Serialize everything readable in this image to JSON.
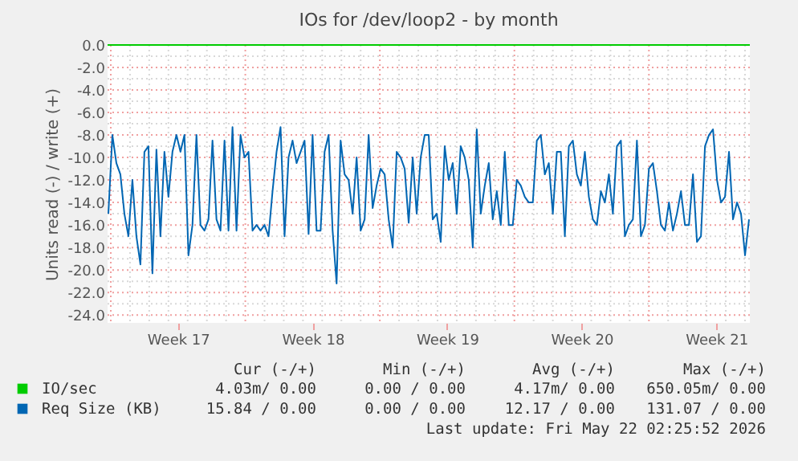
{
  "chart_data": {
    "type": "line",
    "title": "IOs for /dev/loop2 - by month",
    "ylabel": "Units read (-) / write (+)",
    "xlim": [
      "2026-04-19T20:00",
      "2026-05-23T06:00"
    ],
    "xticks": [
      {
        "value": "2026-04-23T12:00",
        "label": "Week 17"
      },
      {
        "value": "2026-04-30T12:00",
        "label": "Week 18"
      },
      {
        "value": "2026-05-07T12:00",
        "label": "Week 19"
      },
      {
        "value": "2026-05-14T12:00",
        "label": "Week 20"
      },
      {
        "value": "2026-05-21T12:00",
        "label": "Week 21"
      }
    ],
    "ylim": [
      -24.7,
      0
    ],
    "yticks": [
      {
        "value": 0,
        "label": "0.0"
      },
      {
        "value": -2,
        "label": "-2.0"
      },
      {
        "value": -4,
        "label": "-4.0"
      },
      {
        "value": -6,
        "label": "-6.0"
      },
      {
        "value": -8,
        "label": "-8.0"
      },
      {
        "value": -10,
        "label": "-10.0"
      },
      {
        "value": -12,
        "label": "-12.0"
      },
      {
        "value": -14,
        "label": "-14.0"
      },
      {
        "value": -16,
        "label": "-16.0"
      },
      {
        "value": -18,
        "label": "-18.0"
      },
      {
        "value": -20,
        "label": "-20.0"
      },
      {
        "value": -22,
        "label": "-22.0"
      },
      {
        "value": -24,
        "label": "-24.0"
      }
    ],
    "grid": true,
    "legend": "bottom",
    "x": [
      "2026-04-19T21:00",
      "2026-04-20T02:00",
      "2026-04-20T07:00",
      "2026-04-20T12:00",
      "2026-04-20T17:00",
      "2026-04-20T22:00",
      "2026-04-21T03:00",
      "2026-04-21T08:00",
      "2026-04-21T13:00",
      "2026-04-21T18:00",
      "2026-04-21T23:00",
      "2026-04-22T04:00",
      "2026-04-22T09:00",
      "2026-04-22T14:00",
      "2026-04-22T19:00",
      "2026-04-23T00:00",
      "2026-04-23T05:00",
      "2026-04-23T10:00",
      "2026-04-23T15:00",
      "2026-04-23T20:00",
      "2026-04-24T01:00",
      "2026-04-24T06:00",
      "2026-04-24T11:00",
      "2026-04-24T16:00",
      "2026-04-24T21:00",
      "2026-04-25T02:00",
      "2026-04-25T07:00",
      "2026-04-25T12:00",
      "2026-04-25T17:00",
      "2026-04-25T22:00",
      "2026-04-26T03:00",
      "2026-04-26T08:00",
      "2026-04-26T13:00",
      "2026-04-26T18:00",
      "2026-04-26T23:00",
      "2026-04-27T04:00",
      "2026-04-27T09:00",
      "2026-04-27T14:00",
      "2026-04-27T19:00",
      "2026-04-28T00:00",
      "2026-04-28T05:00",
      "2026-04-28T10:00",
      "2026-04-28T15:00",
      "2026-04-28T20:00",
      "2026-04-29T01:00",
      "2026-04-29T06:00",
      "2026-04-29T11:00",
      "2026-04-29T16:00",
      "2026-04-29T21:00",
      "2026-04-30T02:00",
      "2026-04-30T07:00",
      "2026-04-30T12:00",
      "2026-04-30T17:00",
      "2026-04-30T22:00",
      "2026-05-01T03:00",
      "2026-05-01T08:00",
      "2026-05-01T13:00",
      "2026-05-01T18:00",
      "2026-05-01T23:00",
      "2026-05-02T04:00",
      "2026-05-02T09:00",
      "2026-05-02T14:00",
      "2026-05-02T19:00",
      "2026-05-03T00:00",
      "2026-05-03T05:00",
      "2026-05-03T10:00",
      "2026-05-03T15:00",
      "2026-05-03T20:00",
      "2026-05-04T01:00",
      "2026-05-04T06:00",
      "2026-05-04T11:00",
      "2026-05-04T16:00",
      "2026-05-04T21:00",
      "2026-05-05T02:00",
      "2026-05-05T07:00",
      "2026-05-05T12:00",
      "2026-05-05T17:00",
      "2026-05-05T22:00",
      "2026-05-06T03:00",
      "2026-05-06T08:00",
      "2026-05-06T13:00",
      "2026-05-06T18:00",
      "2026-05-06T23:00",
      "2026-05-07T04:00",
      "2026-05-07T09:00",
      "2026-05-07T14:00",
      "2026-05-07T19:00",
      "2026-05-08T00:00",
      "2026-05-08T05:00",
      "2026-05-08T10:00",
      "2026-05-08T15:00",
      "2026-05-08T20:00",
      "2026-05-09T01:00",
      "2026-05-09T06:00",
      "2026-05-09T11:00",
      "2026-05-09T16:00",
      "2026-05-09T21:00",
      "2026-05-10T02:00",
      "2026-05-10T07:00",
      "2026-05-10T12:00",
      "2026-05-10T17:00",
      "2026-05-10T22:00",
      "2026-05-11T03:00",
      "2026-05-11T08:00",
      "2026-05-11T13:00",
      "2026-05-11T18:00",
      "2026-05-11T23:00",
      "2026-05-12T04:00",
      "2026-05-12T09:00",
      "2026-05-12T14:00",
      "2026-05-12T19:00",
      "2026-05-13T00:00",
      "2026-05-13T05:00",
      "2026-05-13T10:00",
      "2026-05-13T15:00",
      "2026-05-13T20:00",
      "2026-05-14T01:00",
      "2026-05-14T06:00",
      "2026-05-14T11:00",
      "2026-05-14T16:00",
      "2026-05-14T21:00",
      "2026-05-15T02:00",
      "2026-05-15T07:00",
      "2026-05-15T12:00",
      "2026-05-15T17:00",
      "2026-05-15T22:00",
      "2026-05-16T03:00",
      "2026-05-16T08:00",
      "2026-05-16T13:00",
      "2026-05-16T18:00",
      "2026-05-16T23:00",
      "2026-05-17T04:00",
      "2026-05-17T09:00",
      "2026-05-17T14:00",
      "2026-05-17T19:00",
      "2026-05-18T00:00",
      "2026-05-18T05:00",
      "2026-05-18T10:00",
      "2026-05-18T15:00",
      "2026-05-18T20:00",
      "2026-05-19T01:00",
      "2026-05-19T06:00",
      "2026-05-19T11:00",
      "2026-05-19T16:00",
      "2026-05-19T21:00",
      "2026-05-20T02:00",
      "2026-05-20T07:00",
      "2026-05-20T12:00",
      "2026-05-20T17:00",
      "2026-05-20T22:00",
      "2026-05-21T03:00",
      "2026-05-21T08:00",
      "2026-05-21T13:00",
      "2026-05-21T18:00",
      "2026-05-21T23:00",
      "2026-05-22T04:00",
      "2026-05-22T09:00",
      "2026-05-22T14:00",
      "2026-05-22T19:00",
      "2026-05-23T00:00",
      "2026-05-23T05:00"
    ],
    "series": [
      {
        "name": "IO/sec",
        "color": "#00cc00",
        "x": [
          "2026-04-19T20:00",
          "2026-05-23T06:00"
        ],
        "values": [
          0,
          0
        ]
      },
      {
        "name": "Req Size (KB)",
        "color": "#0066b3",
        "values": [
          -15,
          -8,
          -10.5,
          -11.5,
          -15,
          -17,
          -12,
          -17,
          -19.5,
          -9.5,
          -9,
          -20.3,
          -9.3,
          -17,
          -9.5,
          -13.5,
          -9.5,
          -8,
          -9.5,
          -8,
          -18.7,
          -16,
          -8,
          -16,
          -16.5,
          -15.5,
          -8.5,
          -15.5,
          -16.5,
          -8.5,
          -16.5,
          -7.3,
          -16.5,
          -8,
          -10,
          -9.5,
          -16.5,
          -16,
          -16.5,
          -16,
          -17,
          -13,
          -9.5,
          -7.3,
          -17,
          -10,
          -8.5,
          -10.5,
          -9.5,
          -8.5,
          -16.8,
          -8,
          -16.5,
          -16.5,
          -9.5,
          -8,
          -16.5,
          -21.2,
          -8.5,
          -11.5,
          -12,
          -15,
          -10,
          -16.5,
          -15.5,
          -8,
          -14.5,
          -12.5,
          -11,
          -11.5,
          -15.5,
          -18,
          -9.5,
          -10,
          -11,
          -15.8,
          -10,
          -15,
          -10,
          -8,
          -8,
          -15.5,
          -15,
          -17.5,
          -9,
          -12,
          -10.5,
          -15,
          -9,
          -10,
          -12,
          -18,
          -7.5,
          -15,
          -12.5,
          -10.5,
          -15.5,
          -13,
          -16,
          -9.5,
          -16,
          -16,
          -12,
          -12.5,
          -13.5,
          -14,
          -14,
          -8.5,
          -8,
          -11.5,
          -10.5,
          -15,
          -9.5,
          -9.5,
          -17,
          -9,
          -8.5,
          -11.5,
          -12.5,
          -9.5,
          -13.5,
          -15.5,
          -16,
          -13,
          -14,
          -11.5,
          -15,
          -9,
          -8.5,
          -17,
          -16,
          -15.5,
          -8.5,
          -17,
          -16,
          -11,
          -10.5,
          -13,
          -16,
          -16.5,
          -14,
          -16.5,
          -15,
          -13,
          -16,
          -16,
          -11.5,
          -17.5,
          -17,
          -9,
          -8,
          -7.5,
          -12,
          -14,
          -13.5,
          -9.5,
          -15.5,
          -14,
          -15,
          -18.7,
          -15.5
        ]
      }
    ],
    "annotations": [
      "Cur (-/+)",
      "Min (-/+)",
      "Avg (-/+)",
      "Max (-/+)",
      "4.03m/ 0.00",
      "0.00 / 0.00",
      "4.17m/ 0.00",
      "650.05m/ 0.00",
      "15.84 / 0.00",
      "0.00 / 0.00",
      "12.17 / 0.00",
      "131.07 / 0.00",
      "Last update: Fri May 22 02:25:52 2026"
    ]
  }
}
